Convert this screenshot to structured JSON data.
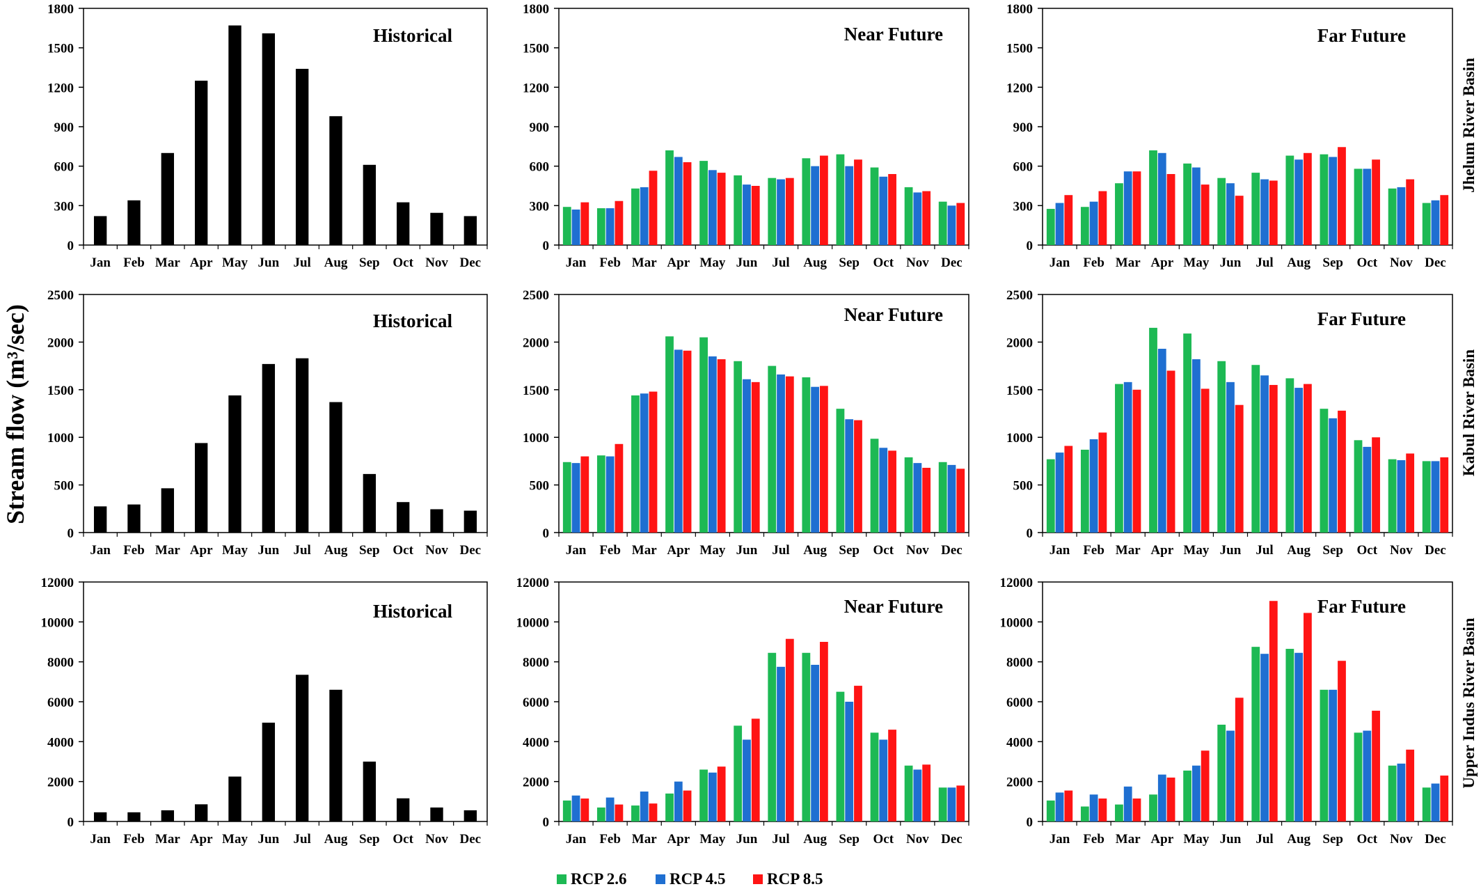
{
  "figure": {
    "y_axis_label": "Stream flow (m³/sec)",
    "legend": [
      {
        "label": "RCP 2.6",
        "color": "#1db954"
      },
      {
        "label": "RCP 4.5",
        "color": "#1f6fd1"
      },
      {
        "label": "RCP 8.5",
        "color": "#ff1414"
      }
    ],
    "historical_color": "#000000",
    "row_labels": [
      "Jhelum River Basin",
      "Kabul River Basin",
      "Upper Indus River Basin"
    ]
  },
  "chart_data": [
    {
      "type": "bar",
      "title": "Historical",
      "row": 0,
      "col": 0,
      "categories": [
        "Jan",
        "Feb",
        "Mar",
        "Apr",
        "May",
        "Jun",
        "Jul",
        "Aug",
        "Sep",
        "Oct",
        "Nov",
        "Dec"
      ],
      "yticks": [
        0,
        300,
        600,
        900,
        1200,
        1500,
        1800
      ],
      "ylim": [
        0,
        1800
      ],
      "series": [
        {
          "values": [
            220,
            340,
            700,
            1250,
            1670,
            1610,
            1340,
            980,
            610,
            325,
            245,
            220
          ]
        }
      ]
    },
    {
      "type": "bar",
      "title": "Near Future",
      "row": 0,
      "col": 1,
      "categories": [
        "Jan",
        "Feb",
        "Mar",
        "Apr",
        "May",
        "Jun",
        "Jul",
        "Aug",
        "Sep",
        "Oct",
        "Nov",
        "Dec"
      ],
      "yticks": [
        0,
        300,
        600,
        900,
        1200,
        1500,
        1800
      ],
      "ylim": [
        0,
        1800
      ],
      "series": [
        {
          "name": "RCP 2.6",
          "values": [
            290,
            280,
            430,
            720,
            640,
            530,
            510,
            660,
            690,
            590,
            440,
            330
          ]
        },
        {
          "name": "RCP 4.5",
          "values": [
            270,
            280,
            440,
            670,
            570,
            460,
            500,
            600,
            600,
            520,
            400,
            300
          ]
        },
        {
          "name": "RCP 8.5",
          "values": [
            325,
            335,
            565,
            630,
            550,
            450,
            510,
            680,
            650,
            540,
            410,
            320
          ]
        }
      ]
    },
    {
      "type": "bar",
      "title": "Far Future",
      "row": 0,
      "col": 2,
      "categories": [
        "Jan",
        "Feb",
        "Mar",
        "Apr",
        "May",
        "Jun",
        "Jul",
        "Aug",
        "Sep",
        "Oct",
        "Nov",
        "Dec"
      ],
      "yticks": [
        0,
        300,
        600,
        900,
        1200,
        1500,
        1800
      ],
      "ylim": [
        0,
        1800
      ],
      "series": [
        {
          "name": "RCP 2.6",
          "values": [
            275,
            290,
            470,
            720,
            620,
            510,
            550,
            680,
            690,
            580,
            430,
            320
          ]
        },
        {
          "name": "RCP 4.5",
          "values": [
            320,
            330,
            560,
            700,
            590,
            470,
            500,
            650,
            670,
            580,
            440,
            340
          ]
        },
        {
          "name": "RCP 8.5",
          "values": [
            380,
            410,
            560,
            540,
            460,
            375,
            490,
            700,
            745,
            650,
            500,
            380
          ]
        }
      ]
    },
    {
      "type": "bar",
      "title": "Historical",
      "row": 1,
      "col": 0,
      "categories": [
        "Jan",
        "Feb",
        "Mar",
        "Apr",
        "May",
        "Jun",
        "Jul",
        "Aug",
        "Sep",
        "Oct",
        "Nov",
        "Dec"
      ],
      "yticks": [
        0,
        500,
        1000,
        1500,
        2000,
        2500
      ],
      "ylim": [
        0,
        2500
      ],
      "series": [
        {
          "values": [
            275,
            295,
            465,
            940,
            1440,
            1770,
            1830,
            1370,
            615,
            320,
            245,
            230
          ]
        }
      ]
    },
    {
      "type": "bar",
      "title": "Near Future",
      "row": 1,
      "col": 1,
      "categories": [
        "Jan",
        "Feb",
        "Mar",
        "Apr",
        "May",
        "Jun",
        "Jul",
        "Aug",
        "Sep",
        "Oct",
        "Nov",
        "Dec"
      ],
      "yticks": [
        0,
        500,
        1000,
        1500,
        2000,
        2500
      ],
      "ylim": [
        0,
        2500
      ],
      "series": [
        {
          "name": "RCP 2.6",
          "values": [
            740,
            810,
            1440,
            2060,
            2050,
            1800,
            1750,
            1630,
            1300,
            985,
            790,
            740
          ]
        },
        {
          "name": "RCP 4.5",
          "values": [
            730,
            800,
            1460,
            1920,
            1850,
            1610,
            1660,
            1530,
            1190,
            890,
            730,
            710
          ]
        },
        {
          "name": "RCP 8.5",
          "values": [
            800,
            930,
            1480,
            1910,
            1820,
            1580,
            1640,
            1540,
            1180,
            860,
            680,
            670
          ]
        }
      ]
    },
    {
      "type": "bar",
      "title": "Far Future",
      "row": 1,
      "col": 2,
      "categories": [
        "Jan",
        "Feb",
        "Mar",
        "Apr",
        "May",
        "Jun",
        "Jul",
        "Aug",
        "Sep",
        "Oct",
        "Nov",
        "Dec"
      ],
      "yticks": [
        0,
        500,
        1000,
        1500,
        2000,
        2500
      ],
      "ylim": [
        0,
        2500
      ],
      "series": [
        {
          "name": "RCP 2.6",
          "values": [
            770,
            870,
            1560,
            2150,
            2090,
            1800,
            1760,
            1620,
            1300,
            970,
            770,
            750
          ]
        },
        {
          "name": "RCP 4.5",
          "values": [
            840,
            980,
            1580,
            1930,
            1820,
            1580,
            1650,
            1520,
            1200,
            900,
            760,
            750
          ]
        },
        {
          "name": "RCP 8.5",
          "values": [
            910,
            1050,
            1500,
            1700,
            1510,
            1340,
            1550,
            1560,
            1280,
            1000,
            830,
            790
          ]
        }
      ]
    },
    {
      "type": "bar",
      "title": "Historical",
      "row": 2,
      "col": 0,
      "categories": [
        "Jan",
        "Feb",
        "Mar",
        "Apr",
        "May",
        "Jun",
        "Jul",
        "Aug",
        "Sep",
        "Oct",
        "Nov",
        "Dec"
      ],
      "yticks": [
        0,
        2000,
        4000,
        6000,
        8000,
        10000,
        12000
      ],
      "ylim": [
        0,
        12000
      ],
      "series": [
        {
          "values": [
            460,
            460,
            560,
            860,
            2250,
            4950,
            7350,
            6600,
            3000,
            1160,
            700,
            560
          ]
        }
      ]
    },
    {
      "type": "bar",
      "title": "Near Future",
      "row": 2,
      "col": 1,
      "categories": [
        "Jan",
        "Feb",
        "Mar",
        "Apr",
        "May",
        "Jun",
        "Jul",
        "Aug",
        "Sep",
        "Oct",
        "Nov",
        "Dec"
      ],
      "yticks": [
        0,
        2000,
        4000,
        6000,
        8000,
        10000,
        12000
      ],
      "ylim": [
        0,
        12000
      ],
      "series": [
        {
          "name": "RCP 2.6",
          "values": [
            1050,
            700,
            800,
            1400,
            2600,
            4800,
            8450,
            8450,
            6500,
            4450,
            2800,
            1700
          ]
        },
        {
          "name": "RCP 4.5",
          "values": [
            1300,
            1200,
            1500,
            2000,
            2450,
            4100,
            7750,
            7850,
            6000,
            4100,
            2600,
            1700
          ]
        },
        {
          "name": "RCP 8.5",
          "values": [
            1150,
            850,
            900,
            1550,
            2750,
            5150,
            9150,
            9000,
            6800,
            4600,
            2850,
            1800
          ]
        }
      ]
    },
    {
      "type": "bar",
      "title": "Far Future",
      "row": 2,
      "col": 2,
      "categories": [
        "Jan",
        "Feb",
        "Mar",
        "Apr",
        "May",
        "Jun",
        "Jul",
        "Aug",
        "Sep",
        "Oct",
        "Nov",
        "Dec"
      ],
      "yticks": [
        0,
        2000,
        4000,
        6000,
        8000,
        10000,
        12000
      ],
      "ylim": [
        0,
        12000
      ],
      "series": [
        {
          "name": "RCP 2.6",
          "values": [
            1050,
            750,
            850,
            1350,
            2550,
            4850,
            8750,
            8650,
            6600,
            4450,
            2800,
            1700
          ]
        },
        {
          "name": "RCP 4.5",
          "values": [
            1450,
            1350,
            1750,
            2350,
            2800,
            4550,
            8400,
            8450,
            6600,
            4550,
            2900,
            1900
          ]
        },
        {
          "name": "RCP 8.5",
          "values": [
            1550,
            1150,
            1150,
            2200,
            3550,
            6200,
            11050,
            10450,
            8050,
            5550,
            3600,
            2300
          ]
        }
      ]
    }
  ]
}
